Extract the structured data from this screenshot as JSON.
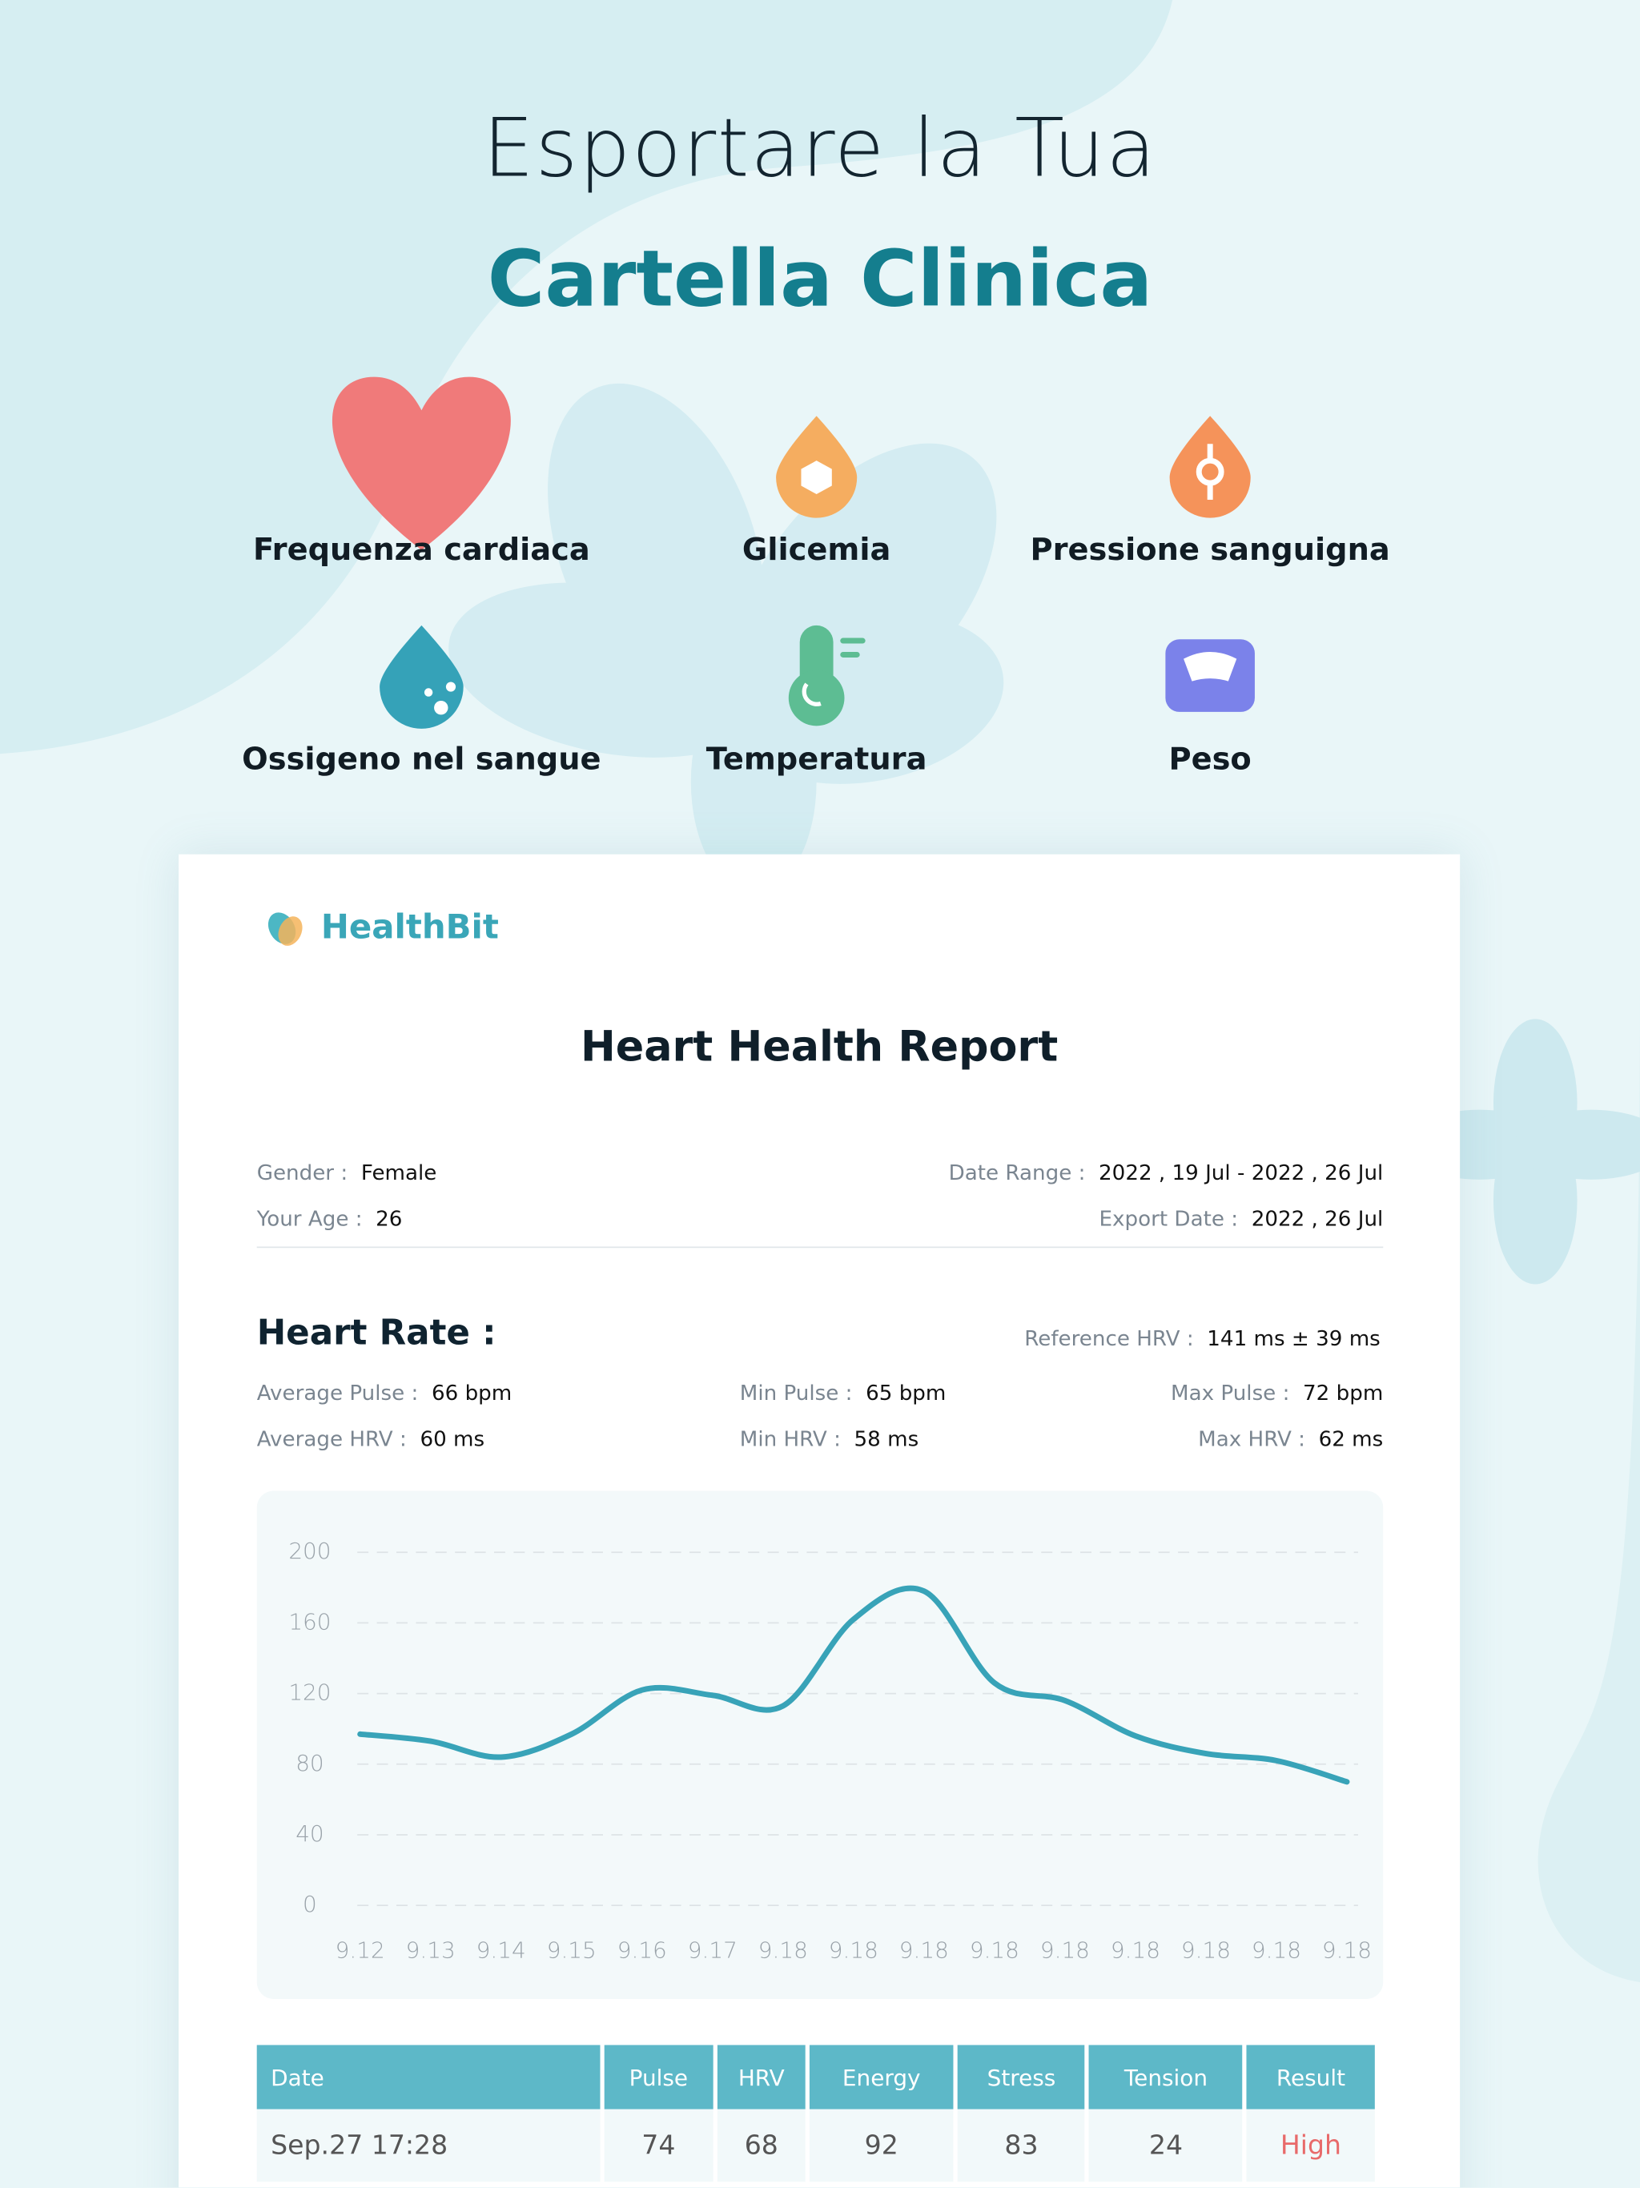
{
  "header": {
    "title_line1": "Esportare la Tua",
    "title_line2": "Cartella Clinica"
  },
  "features": [
    "Frequenza cardiaca",
    "Glicemia",
    "Pressione sanguigna",
    "Ossigeno nel sangue",
    "Temperatura",
    "Peso"
  ],
  "report": {
    "brand": "HealthBit",
    "title": "Heart Health Report",
    "info": {
      "gender_label": "Gender :",
      "gender": "Female",
      "age_label": "Your Age :",
      "age": "26",
      "range_label": "Date Range :",
      "range": "2022 , 19 Jul - 2022 , 26 Jul",
      "export_label": "Export Date :",
      "export": "2022 , 26 Jul"
    },
    "heart_rate": {
      "heading": "Heart Rate :",
      "ref_label": "Reference HRV  :",
      "ref": "141 ms ± 39 ms",
      "avg_pulse_label": "Average Pulse :",
      "avg_pulse": "66 bpm",
      "min_pulse_label": "Min Pulse :",
      "min_pulse": "65 bpm",
      "max_pulse_label": "Max Pulse :",
      "max_pulse": "72 bpm",
      "avg_hrv_label": "Average HRV  :",
      "avg_hrv": "60 ms",
      "min_hrv_label": "Min HRV :",
      "min_hrv": "58 ms",
      "max_hrv_label": "Max HRV :",
      "max_hrv": "62 ms"
    },
    "table": {
      "header": [
        "Date",
        "Pulse",
        "HRV",
        "Energy",
        "Stress",
        "Tension",
        "Result"
      ],
      "rows": [
        [
          "Sep.27 17:28",
          "74",
          "68",
          "92",
          "83",
          "24",
          "High"
        ]
      ]
    }
  },
  "chart_data": {
    "type": "line",
    "categories": [
      "9.12",
      "9.13",
      "9.14",
      "9.15",
      "9.16",
      "9.17",
      "9.18",
      "9.18",
      "9.18",
      "9.18",
      "9.18",
      "9.18",
      "9.18",
      "9.18",
      "9.18"
    ],
    "series": [
      {
        "color": "#38a3b8",
        "values": [
          97,
          93,
          84,
          97,
          122,
          119,
          113,
          162,
          178,
          126,
          116,
          96,
          86,
          82,
          70
        ]
      }
    ],
    "ylim": [
      0,
      200
    ],
    "yticks": [
      0,
      40,
      80,
      120,
      160,
      200
    ],
    "grid": true
  }
}
